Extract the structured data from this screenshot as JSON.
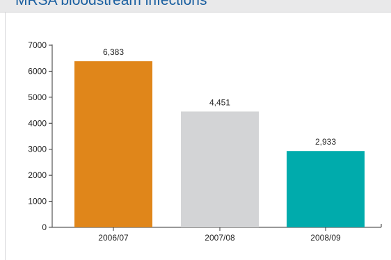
{
  "title": "MRSA bloodstream infections",
  "chart_data": {
    "type": "bar",
    "title": "MRSA bloodstream infections",
    "xlabel": "",
    "ylabel": "",
    "categories": [
      "2006/07",
      "2007/08",
      "2008/09"
    ],
    "values": [
      6383,
      4451,
      2933
    ],
    "value_labels": [
      "6,383",
      "4,451",
      "2,933"
    ],
    "colors": [
      "#e0861a",
      "#d3d4d6",
      "#00abac"
    ],
    "ylim": [
      0,
      7000
    ],
    "yticks": [
      0,
      1000,
      2000,
      3000,
      4000,
      5000,
      6000,
      7000
    ],
    "ytick_labels": [
      "0",
      "1000",
      "2000",
      "3000",
      "4000",
      "5000",
      "6000",
      "7000"
    ],
    "grid": false,
    "legend": "none"
  }
}
